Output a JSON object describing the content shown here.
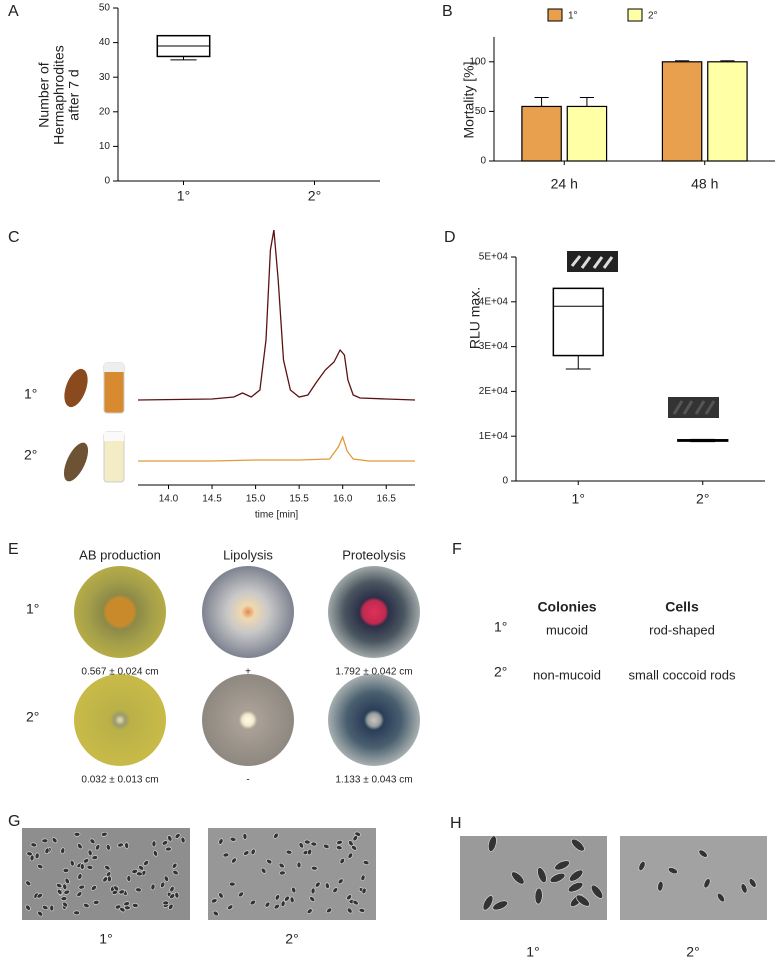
{
  "panel_labels": [
    "A",
    "B",
    "C",
    "D",
    "E",
    "F",
    "G",
    "H"
  ],
  "chart_data": [
    {
      "type": "box",
      "y_label": [
        "Number of",
        "Hermaphrodites",
        "after 7 d"
      ],
      "categories": [
        "1°",
        "2°"
      ],
      "boxes": [
        {
          "min": 35,
          "q1": 36,
          "median": 39,
          "q3": 42,
          "max": 42
        },
        {
          "min": 0,
          "q1": 0,
          "median": 0,
          "q3": 0,
          "max": 0
        }
      ],
      "ylim": [
        0,
        50
      ],
      "yticks": [
        0,
        10,
        20,
        30,
        40,
        50
      ]
    },
    {
      "type": "bar",
      "y_label": "Mortality [%]",
      "categories": [
        "24 h",
        "48 h"
      ],
      "series": [
        {
          "name": "1°",
          "color": "#e9a04e",
          "values": [
            55,
            100
          ],
          "errors": [
            9,
            1
          ]
        },
        {
          "name": "2°",
          "color": "#ffffa6",
          "values": [
            55,
            100
          ],
          "errors": [
            9,
            1
          ]
        }
      ],
      "ylim": [
        0,
        125
      ],
      "yticks": [
        0,
        50,
        100
      ],
      "legend": "top"
    },
    {
      "type": "line",
      "x_label": "time [min]",
      "xlim": [
        13.65,
        16.83
      ],
      "xticks": [
        {
          "value": 14,
          "label": "14.0"
        },
        14.5,
        {
          "value": 15,
          "label": "15.0"
        },
        15.5,
        {
          "value": 16,
          "label": "16.0"
        },
        16.5
      ],
      "ylim": [
        0,
        175
      ],
      "series": [
        {
          "name": "1°",
          "color": "#5c1212",
          "x": [
            13.65,
            14.5,
            14.75,
            14.85,
            14.95,
            15.05,
            15.12,
            15.17,
            15.21,
            15.26,
            15.32,
            15.4,
            15.5,
            15.6,
            15.7,
            15.8,
            15.9,
            15.97,
            16.02,
            16.06,
            16.12,
            16.2,
            16.5,
            16.83
          ],
          "values": [
            0,
            1,
            3,
            7,
            3,
            10,
            60,
            150,
            170,
            120,
            40,
            10,
            3,
            5,
            18,
            30,
            38,
            50,
            45,
            20,
            5,
            2,
            1,
            0
          ]
        },
        {
          "name": "2°",
          "color": "#e09a3a",
          "x": [
            13.65,
            14.5,
            15.0,
            15.5,
            15.85,
            15.95,
            16.0,
            16.05,
            16.12,
            16.3,
            16.83
          ],
          "values": [
            0,
            0,
            1,
            1,
            2,
            14,
            24,
            10,
            2,
            0,
            0
          ]
        }
      ]
    },
    {
      "type": "box",
      "y_label": "RLU max.",
      "categories": [
        "1°",
        "2°"
      ],
      "boxes": [
        {
          "min": 25000,
          "q1": 28000,
          "median": 39000,
          "q3": 43000,
          "max": 43000
        },
        {
          "min": 8800,
          "q1": 8900,
          "median": 9000,
          "q3": 9200,
          "max": 9300
        }
      ],
      "ylim": [
        0,
        50000
      ],
      "yticks": [
        0,
        {
          "value": 10000,
          "label": "1E+04"
        },
        {
          "value": 20000,
          "label": "2E+04"
        },
        {
          "value": 30000,
          "label": "3E+04"
        },
        {
          "value": 40000,
          "label": "4E+04"
        },
        {
          "value": 50000,
          "label": "5E+04"
        }
      ]
    }
  ],
  "panel_e": {
    "columns": [
      "AB production",
      "Lipolysis",
      "Proteolysis"
    ],
    "rows": [
      {
        "label": "1°",
        "values": [
          "0.567 ± 0.024 cm",
          "+",
          "1.792 ± 0.042 cm"
        ]
      },
      {
        "label": "2°",
        "values": [
          "0.032 ± 0.013 cm",
          "-",
          "1.133 ± 0.043 cm"
        ]
      }
    ]
  },
  "panel_f": {
    "header": [
      "Colonies",
      "Cells"
    ],
    "rows": [
      [
        "1°",
        "mucoid",
        "rod-shaped"
      ],
      [
        "2°",
        "non-mucoid",
        "small coccoid rods"
      ]
    ]
  },
  "panel_g": {
    "labels": [
      "1°",
      "2°"
    ]
  },
  "panel_h": {
    "labels": [
      "1°",
      "2°"
    ]
  }
}
